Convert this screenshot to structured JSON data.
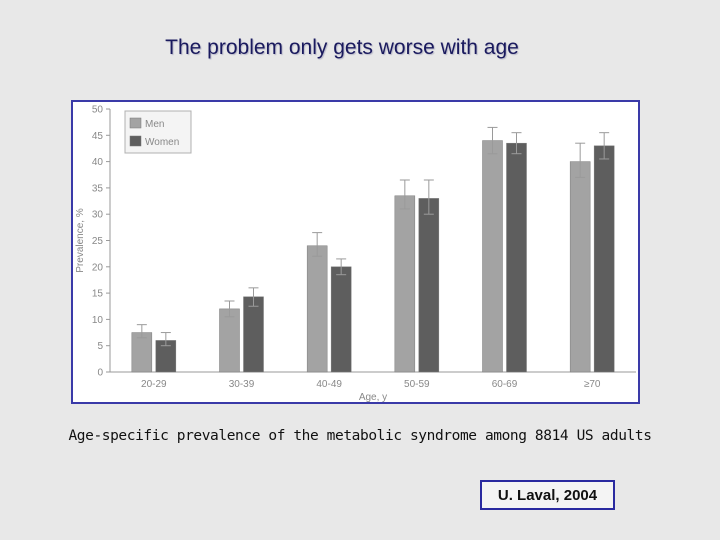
{
  "slide": {
    "title": "The problem only gets worse with age",
    "caption": "Age-specific prevalence of the metabolic syndrome among 8814 US adults",
    "credit": "U. Laval, 2004"
  },
  "colors": {
    "men": "#a3a3a3",
    "women": "#5e5e5e",
    "axis": "#9a9a9a",
    "frame": "#3a3aa8"
  },
  "chart_data": {
    "type": "bar",
    "title": "",
    "xlabel": "Age, y",
    "ylabel": "Prevalence, %",
    "ylim": [
      0,
      50
    ],
    "yticks": [
      0,
      5,
      10,
      15,
      20,
      25,
      30,
      35,
      40,
      45,
      50
    ],
    "categories": [
      "20-29",
      "30-39",
      "40-49",
      "50-59",
      "60-69",
      "≥70"
    ],
    "series": [
      {
        "name": "Men",
        "values": [
          7.5,
          12,
          24,
          33.5,
          44,
          40
        ],
        "error_low": [
          6.5,
          10.5,
          22,
          31,
          41.5,
          37
        ],
        "error_high": [
          9,
          13.5,
          26.5,
          36.5,
          46.5,
          43.5
        ]
      },
      {
        "name": "Women",
        "values": [
          6,
          14.3,
          20,
          33,
          43.5,
          43
        ],
        "error_low": [
          5,
          12.5,
          18.5,
          30,
          41.5,
          40.5
        ],
        "error_high": [
          7.5,
          16,
          21.5,
          36.5,
          45.5,
          45.5
        ]
      }
    ],
    "legend": [
      "Men",
      "Women"
    ],
    "legend_position": "top-left",
    "grid": false
  }
}
